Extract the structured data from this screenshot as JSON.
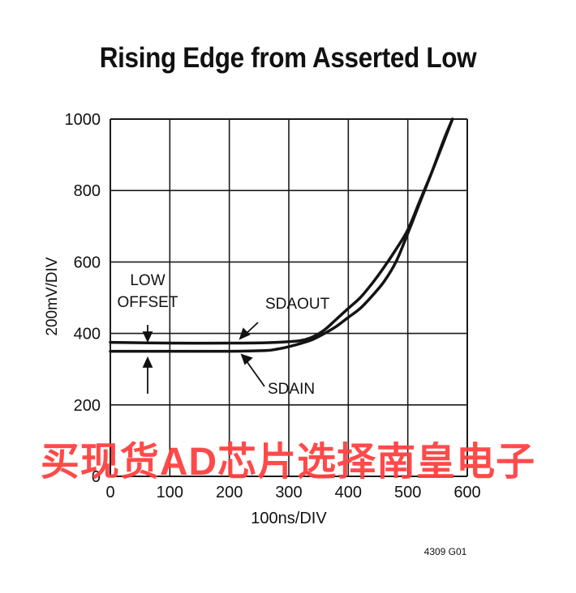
{
  "chart_data": {
    "type": "line",
    "title": "Rising Edge from Asserted Low",
    "xlabel": "100ns/DIV",
    "ylabel": "200mV/DIV",
    "xlim": [
      0,
      600
    ],
    "ylim": [
      0,
      1000
    ],
    "xticks": [
      "0",
      "100",
      "200",
      "300",
      "400",
      "500",
      "600"
    ],
    "yticks": [
      "0",
      "200",
      "400",
      "600",
      "800",
      "1000"
    ],
    "grid": true,
    "series": [
      {
        "name": "SDAOUT",
        "x": [
          0,
          100,
          200,
          260,
          300,
          320,
          340,
          360,
          380,
          400,
          420,
          440,
          460,
          480,
          500,
          520,
          540,
          560,
          575
        ],
        "y": [
          375,
          373,
          373,
          374,
          377,
          380,
          390,
          410,
          440,
          470,
          500,
          540,
          585,
          635,
          690,
          770,
          850,
          935,
          1000
        ]
      },
      {
        "name": "SDAIN",
        "x": [
          0,
          100,
          200,
          260,
          280,
          300,
          320,
          340,
          360,
          380,
          400,
          420,
          440,
          460,
          480,
          500,
          520,
          540,
          560,
          575
        ],
        "y": [
          350,
          350,
          350,
          352,
          356,
          363,
          372,
          383,
          400,
          420,
          445,
          470,
          505,
          545,
          600,
          680,
          765,
          850,
          940,
          1000
        ]
      }
    ],
    "annotations": [
      {
        "text": "LOW"
      },
      {
        "text": "OFFSET"
      },
      {
        "text": "SDAOUT"
      },
      {
        "text": "SDAIN"
      }
    ],
    "figure_code": "4309 G01"
  },
  "watermark": "买现货AD芯片选择南皇电子",
  "colors": {
    "curve": "#141414",
    "grid": "#1a1a1a",
    "watermark": "#ff4040"
  }
}
